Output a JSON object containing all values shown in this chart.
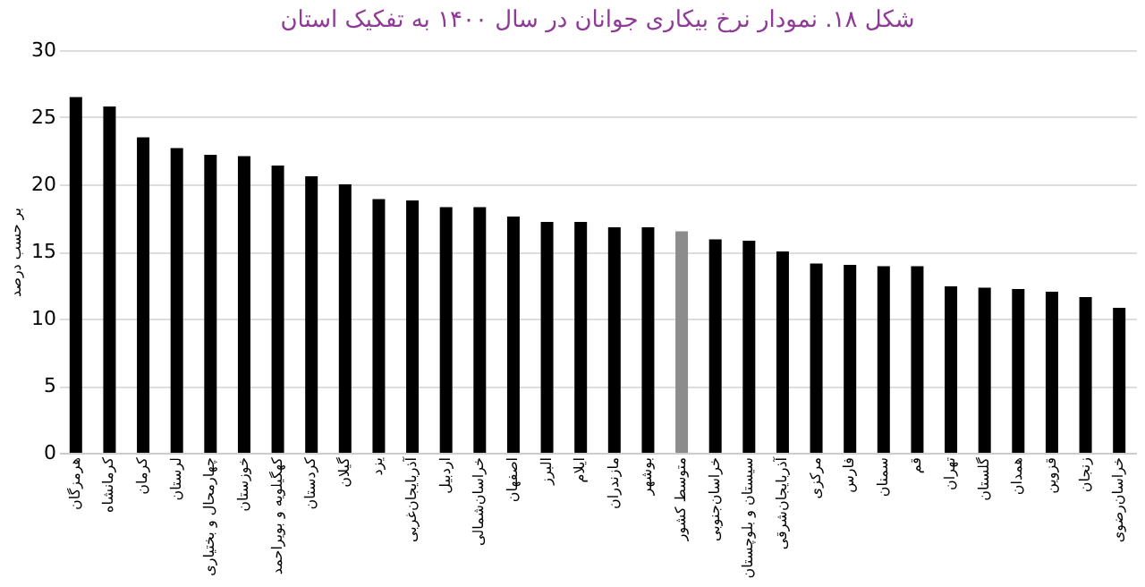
{
  "chart_data": {
    "type": "bar",
    "title": "شکل ۱۸. نمودار نرخ بیکاری جوانان در سال ۱۴۰۰ به تفکیک استان",
    "ylabel": "بر حسب درصد",
    "categories": [
      "هرمزگان",
      "کرمانشاه",
      "کرمان",
      "لرستان",
      "چهارمحال و بختیاری",
      "خوزستان",
      "کهگیلویه و بویراحمد",
      "کردستان",
      "گیلان",
      "یزد",
      "آذربایجان‌غربی",
      "اردبیل",
      "خراسان‌شمالی",
      "اصفهان",
      "البرز",
      "ایلام",
      "مازندران",
      "بوشهر",
      "متوسط کشور",
      "خراسان‌جنوبی",
      "سیستان و بلوچستان",
      "آذربایجان‌شرقی",
      "مرکزی",
      "فارس",
      "سمنان",
      "قم",
      "تهران",
      "گلستان",
      "همدان",
      "قزوین",
      "زنجان",
      "خراسان‌رضوی"
    ],
    "values": [
      26.5,
      25.8,
      23.5,
      22.7,
      22.2,
      22.1,
      21.4,
      20.6,
      20.0,
      18.9,
      18.8,
      18.3,
      18.3,
      17.6,
      17.2,
      17.2,
      16.8,
      16.8,
      16.5,
      15.9,
      15.8,
      15.0,
      14.1,
      14.0,
      13.9,
      13.9,
      12.4,
      12.3,
      12.2,
      12.0,
      11.6,
      10.8
    ],
    "colors": [
      "#000000",
      "#000000",
      "#000000",
      "#000000",
      "#000000",
      "#000000",
      "#000000",
      "#000000",
      "#000000",
      "#000000",
      "#000000",
      "#000000",
      "#000000",
      "#000000",
      "#000000",
      "#000000",
      "#000000",
      "#000000",
      "#8c8c8c",
      "#000000",
      "#000000",
      "#000000",
      "#000000",
      "#000000",
      "#000000",
      "#000000",
      "#000000",
      "#000000",
      "#000000",
      "#000000",
      "#000000",
      "#000000"
    ],
    "ylim": [
      0,
      30
    ],
    "yticks": [
      0,
      5,
      10,
      15,
      20,
      25,
      30
    ],
    "grid": "y"
  }
}
